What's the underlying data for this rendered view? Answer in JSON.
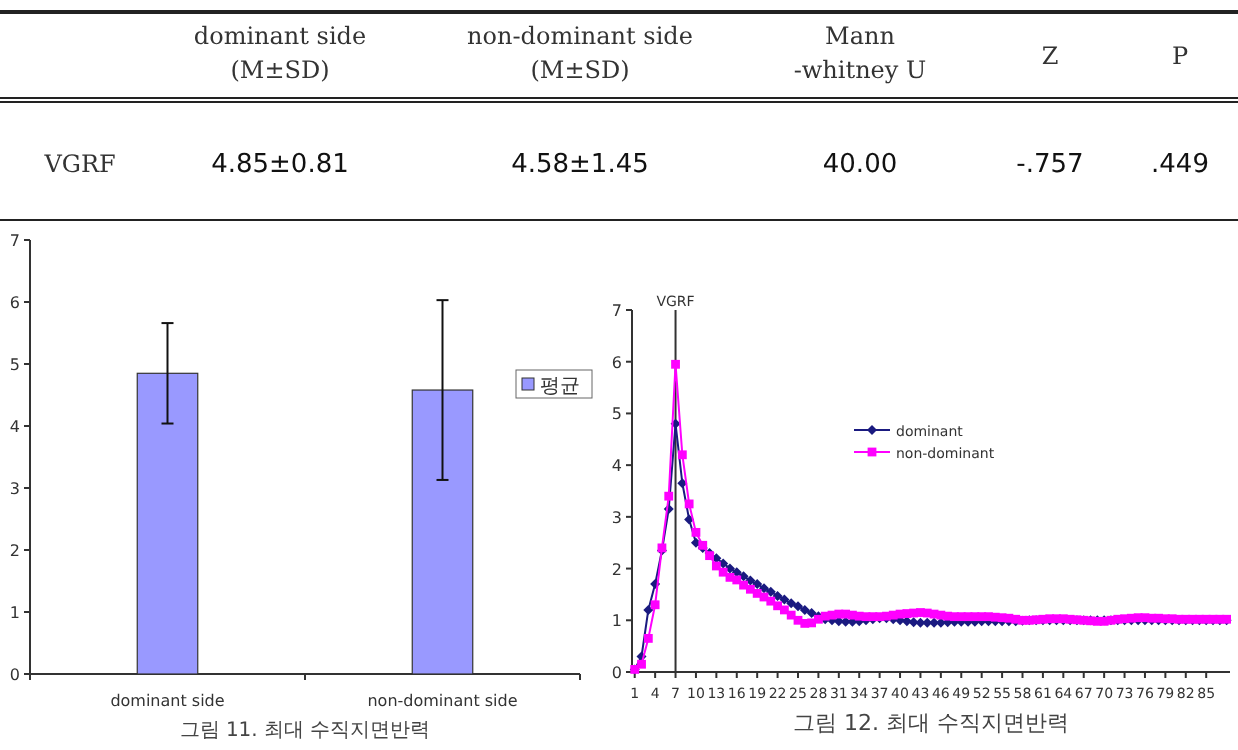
{
  "chart_data": [
    {
      "type": "other",
      "categories": [
        null,
        "dominant side\n(M±SD)",
        "non-dominant side\n(M±SD)",
        "Mann\n-whitney U",
        "Z",
        "P"
      ],
      "y_categories": [
        "VGRF"
      ],
      "cell_labels": [
        [
          "4.85±0.81",
          "4.58±1.45",
          "40.00",
          "-.757",
          ".449"
        ]
      ]
    },
    {
      "type": "bar",
      "categories": [
        "dominant side",
        "non-dominant side"
      ],
      "series": [
        {
          "name": "평균",
          "color": "#9999ff",
          "values": [
            4.85,
            4.58
          ],
          "errors": [
            0.81,
            1.45
          ]
        }
      ],
      "ylim": [
        0,
        7
      ],
      "yticks": [
        0,
        1,
        2,
        3,
        4,
        5,
        6,
        7
      ],
      "legend": "right",
      "annotations": [
        "그림 11. 최대 수직지면반력"
      ]
    },
    {
      "type": "line",
      "x": [
        1,
        2,
        3,
        4,
        5,
        6,
        7,
        8,
        9,
        10,
        11,
        12,
        13,
        14,
        15,
        16,
        17,
        18,
        19,
        20,
        21,
        22,
        23,
        24,
        25,
        26,
        27,
        28,
        29,
        30,
        31,
        32,
        33,
        34,
        35,
        36,
        37,
        38,
        39,
        40,
        41,
        42,
        43,
        44,
        45,
        46,
        47,
        48,
        49,
        50,
        51,
        52,
        53,
        54,
        55,
        56,
        57,
        58,
        59,
        60,
        61,
        62,
        63,
        64,
        65,
        66,
        67,
        68,
        69,
        70,
        71,
        72,
        73,
        74,
        75,
        76,
        77,
        78,
        79,
        80,
        81,
        82,
        83,
        84,
        85,
        86,
        87,
        88
      ],
      "series": [
        {
          "name": "dominant",
          "color": "#1a1a80",
          "marker": "diamond",
          "values": [
            0.05,
            0.3,
            1.2,
            1.7,
            2.35,
            3.15,
            4.8,
            3.65,
            2.95,
            2.5,
            2.4,
            2.3,
            2.2,
            2.1,
            2.0,
            1.93,
            1.85,
            1.77,
            1.7,
            1.62,
            1.55,
            1.47,
            1.4,
            1.33,
            1.27,
            1.2,
            1.14,
            1.08,
            1.02,
            1.0,
            0.98,
            0.97,
            0.97,
            0.98,
            1.0,
            1.02,
            1.04,
            1.04,
            1.02,
            1.0,
            0.98,
            0.96,
            0.95,
            0.95,
            0.95,
            0.95,
            0.96,
            0.97,
            0.97,
            0.97,
            0.97,
            0.98,
            0.98,
            0.98,
            0.98,
            0.98,
            0.98,
            0.99,
            1.0,
            1.0,
            1.0,
            1.0,
            1.0,
            1.0,
            1.0,
            1.0,
            1.0,
            1.0,
            1.0,
            1.0,
            1.0,
            1.0,
            1.0,
            1.0,
            1.0,
            1.0,
            1.0,
            1.0,
            1.0,
            1.0,
            1.0,
            1.0,
            1.0,
            1.0,
            1.0,
            1.0,
            1.0,
            1.0
          ]
        },
        {
          "name": "non-dominant",
          "color": "#ff00ff",
          "marker": "square",
          "values": [
            0.05,
            0.15,
            0.65,
            1.3,
            2.4,
            3.4,
            5.95,
            4.2,
            3.25,
            2.7,
            2.45,
            2.25,
            2.05,
            1.93,
            1.83,
            1.78,
            1.68,
            1.6,
            1.52,
            1.45,
            1.37,
            1.28,
            1.2,
            1.1,
            1.0,
            0.94,
            0.95,
            1.02,
            1.08,
            1.1,
            1.12,
            1.12,
            1.1,
            1.08,
            1.07,
            1.07,
            1.07,
            1.08,
            1.1,
            1.12,
            1.13,
            1.14,
            1.15,
            1.14,
            1.12,
            1.1,
            1.08,
            1.07,
            1.07,
            1.07,
            1.07,
            1.07,
            1.07,
            1.06,
            1.05,
            1.04,
            1.02,
            1.0,
            1.0,
            1.01,
            1.02,
            1.03,
            1.03,
            1.03,
            1.02,
            1.01,
            1.0,
            0.99,
            0.98,
            0.98,
            1.0,
            1.02,
            1.03,
            1.04,
            1.05,
            1.05,
            1.04,
            1.04,
            1.03,
            1.03,
            1.02,
            1.02,
            1.02,
            1.02,
            1.02,
            1.02,
            1.02,
            1.02
          ]
        }
      ],
      "xlim": [
        0.6,
        88.5
      ],
      "xticks": [
        1,
        4,
        7,
        10,
        13,
        16,
        19,
        22,
        25,
        28,
        31,
        34,
        37,
        40,
        43,
        46,
        49,
        52,
        55,
        58,
        61,
        64,
        67,
        70,
        73,
        76,
        79,
        82,
        85
      ],
      "ylim": [
        0,
        7
      ],
      "yticks": [
        0,
        1,
        2,
        3,
        4,
        5,
        6,
        7
      ],
      "legend": "top",
      "ref_lines": [
        {
          "axis": "x",
          "value": 7,
          "label": "VGRF",
          "color": "#333333"
        }
      ],
      "annotations": [
        "그림 12. 최대 수직지면반력"
      ]
    }
  ]
}
